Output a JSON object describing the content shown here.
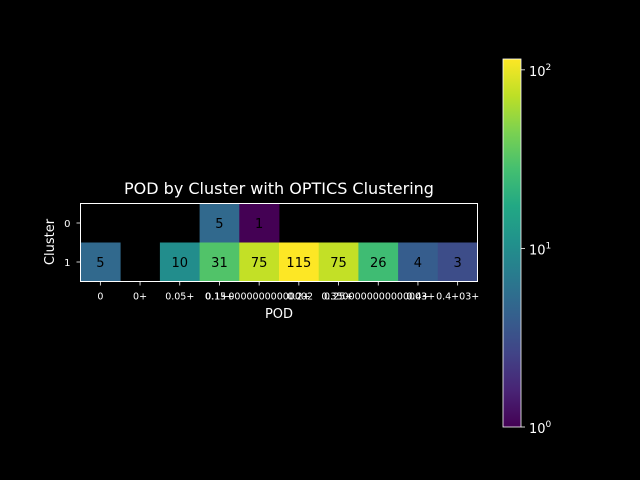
{
  "chart_data": {
    "type": "heatmap",
    "title": "POD by Cluster with OPTICS Clustering",
    "xlabel": "POD",
    "ylabel": "Cluster",
    "x_tick_labels": [
      "0",
      "0+",
      "0.05+",
      "0.15+",
      "0.1+00000000000002",
      "0.2+",
      "0.25+",
      "0.3500000000000003+",
      "0.4+",
      "0.4+03+"
    ],
    "y_tick_labels": [
      "0",
      "1"
    ],
    "values": [
      [
        null,
        null,
        null,
        5,
        1,
        null,
        null,
        null,
        null,
        null
      ],
      [
        5,
        null,
        10,
        31,
        75,
        115,
        75,
        26,
        4,
        3
      ]
    ],
    "colorbar": {
      "scale": "log",
      "min": 1,
      "max": 115,
      "colormap": "viridis",
      "tick_labels": [
        {
          "base": "10",
          "exp": "0",
          "value": 1
        },
        {
          "base": "10",
          "exp": "1",
          "value": 10
        },
        {
          "base": "10",
          "exp": "2",
          "value": 100
        }
      ]
    },
    "colors": {
      "background": "#000000",
      "foreground": "#ffffff",
      "cell_text": "#000000"
    },
    "grid": false
  }
}
